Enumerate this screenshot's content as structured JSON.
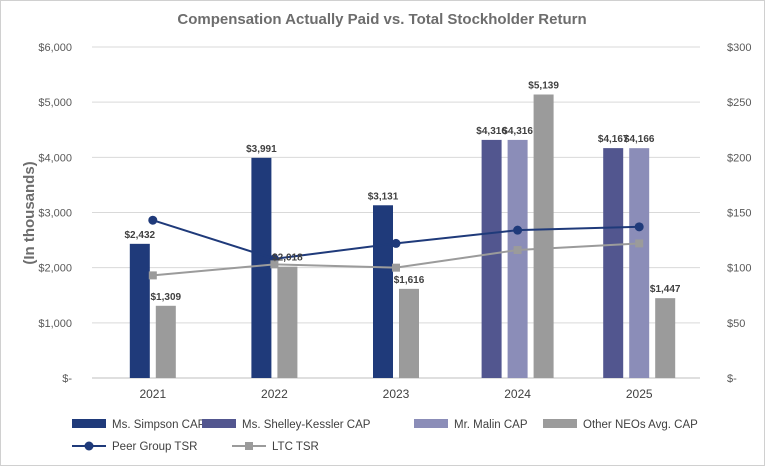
{
  "chart_data": {
    "type": "bar",
    "title": "Compensation Actually Paid vs. Total Stockholder Return",
    "ylabel": "(In thousands)",
    "categories": [
      "2021",
      "2022",
      "2023",
      "2024",
      "2025"
    ],
    "ylim": [
      0,
      6000
    ],
    "y_ticks": [
      "$-",
      "$1,000",
      "$2,000",
      "$3,000",
      "$4,000",
      "$5,000",
      "$6,000"
    ],
    "y2lim": [
      0,
      300
    ],
    "y2_ticks": [
      "$-",
      "$50",
      "$100",
      "$150",
      "$200",
      "$250",
      "$300"
    ],
    "grid": true,
    "legend_position": "bottom",
    "series": [
      {
        "name": "Ms. Simpson CAP",
        "kind": "bar",
        "color": "#1f3a7a",
        "values": [
          2432,
          3991,
          3131,
          null,
          null
        ],
        "labels": [
          "$2,432",
          "$3,991",
          "$3,131",
          "",
          ""
        ]
      },
      {
        "name": "Ms. Shelley-Kessler CAP",
        "kind": "bar",
        "color": "#52568f",
        "values": [
          null,
          null,
          null,
          4316,
          4167
        ],
        "labels": [
          "",
          "",
          "",
          "$4,316",
          "$4,167"
        ]
      },
      {
        "name": "Mr. Malin CAP",
        "kind": "bar",
        "color": "#8b8db8",
        "values": [
          null,
          null,
          null,
          4316,
          4166
        ],
        "labels": [
          "",
          "",
          "",
          "$4,316",
          "$4,166"
        ]
      },
      {
        "name": "Other NEOs Avg. CAP",
        "kind": "bar",
        "color": "#9b9b9b",
        "values": [
          1309,
          2018,
          1616,
          5139,
          1447
        ],
        "labels": [
          "$1,309",
          "$2,018",
          "$1,616",
          "$5,139",
          "$1,447"
        ]
      },
      {
        "name": "Peer Group TSR",
        "kind": "line",
        "axis": "right",
        "color": "#1f3a7a",
        "marker": "circle",
        "values": [
          143,
          108,
          122,
          134,
          137
        ]
      },
      {
        "name": "LTC TSR",
        "kind": "line",
        "axis": "right",
        "color": "#9b9b9b",
        "marker": "square",
        "values": [
          93,
          103,
          100,
          116,
          122
        ]
      }
    ],
    "legend_rows": [
      [
        "Ms. Simpson CAP",
        "Ms. Shelley-Kessler CAP",
        "Mr. Malin CAP",
        "Other NEOs Avg. CAP"
      ],
      [
        "Peer Group TSR",
        "LTC TSR"
      ]
    ]
  }
}
